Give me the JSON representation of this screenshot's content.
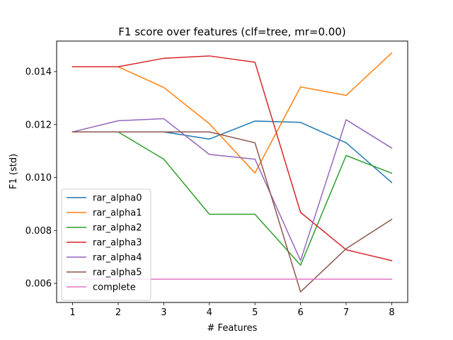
{
  "chart_data": {
    "type": "line",
    "title": "F1 score over features (clf=tree, mr=0.00)",
    "xlabel": "# Features",
    "ylabel": "F1 (std)",
    "x": [
      1,
      2,
      3,
      4,
      5,
      6,
      7,
      8
    ],
    "xlim": [
      0.65,
      8.35
    ],
    "ylim": [
      0.00528,
      0.01515
    ],
    "xticks": [
      "1",
      "2",
      "3",
      "4",
      "5",
      "6",
      "7",
      "8"
    ],
    "yticks": [
      0.006,
      0.008,
      0.01,
      0.012,
      0.014
    ],
    "ytick_labels": [
      "0.006",
      "0.008",
      "0.010",
      "0.012",
      "0.014"
    ],
    "legend_position": "lower-left",
    "grid": false,
    "series": [
      {
        "name": "rar_alpha0",
        "color": "#1f77b4",
        "values": [
          0.01172,
          0.01172,
          0.01172,
          0.01145,
          0.01213,
          0.01208,
          0.01131,
          0.00981
        ]
      },
      {
        "name": "rar_alpha1",
        "color": "#ff7f0e",
        "values": [
          0.01418,
          0.01418,
          0.0134,
          0.01203,
          0.01017,
          0.01342,
          0.0131,
          0.0147
        ]
      },
      {
        "name": "rar_alpha2",
        "color": "#2ca02c",
        "values": [
          0.01172,
          0.01172,
          0.01069,
          0.00861,
          0.00861,
          0.00669,
          0.01083,
          0.01016
        ]
      },
      {
        "name": "rar_alpha3",
        "color": "#d62728",
        "values": [
          0.01418,
          0.01418,
          0.0145,
          0.01459,
          0.01435,
          0.00868,
          0.00727,
          0.00686
        ]
      },
      {
        "name": "rar_alpha4",
        "color": "#9467bd",
        "values": [
          0.01172,
          0.01214,
          0.01222,
          0.01087,
          0.01069,
          0.00686,
          0.01218,
          0.01111
        ]
      },
      {
        "name": "rar_alpha5",
        "color": "#8c564b",
        "values": [
          0.01172,
          0.01172,
          0.01172,
          0.01172,
          0.01131,
          0.00568,
          0.00731,
          0.00842
        ]
      },
      {
        "name": "complete",
        "color": "#e377c2",
        "values": [
          0.00616,
          0.00616,
          0.00616,
          0.00616,
          0.00616,
          0.00616,
          0.00616,
          0.00616
        ]
      }
    ]
  }
}
